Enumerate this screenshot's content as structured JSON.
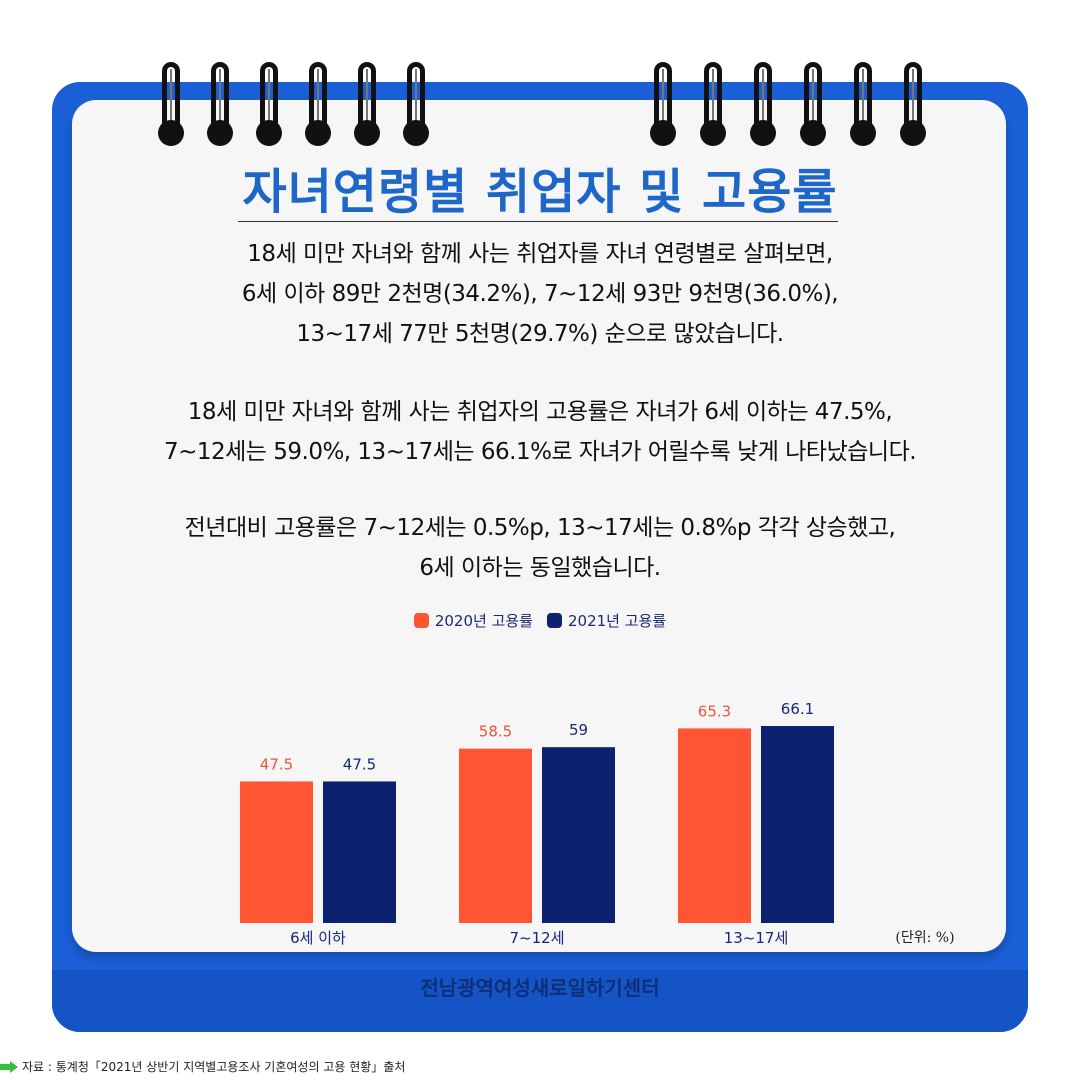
{
  "title": "자녀연령별 취업자 및 고용률",
  "paragraphs": [
    [
      "18세 미만 자녀와 함께 사는 취업자를 자녀 연령별로 살펴보면,",
      "6세 이하 89만 2천명(34.2%), 7~12세 93만 9천명(36.0%),",
      "13~17세 77만 5천명(29.7%) 순으로 많았습니다."
    ],
    [
      "18세 미만 자녀와 함께 사는 취업자의 고용률은 자녀가 6세 이하는 47.5%,",
      "7~12세는 59.0%, 13~17세는 66.1%로 자녀가 어릴수록 낮게 나타났습니다."
    ],
    [
      "전년대비 고용률은 7~12세는 0.5%p, 13~17세는 0.8%p 각각 상승했고,",
      "6세 이하는 동일했습니다."
    ]
  ],
  "chart_data": {
    "type": "bar",
    "categories": [
      "6세 이하",
      "7~12세",
      "13~17세"
    ],
    "series": [
      {
        "name": "2020년 고용률",
        "values": [
          47.5,
          58.5,
          65.3
        ],
        "color": "#ff5533",
        "label_color": "#e8553a"
      },
      {
        "name": "2021년 고용률",
        "values": [
          47.5,
          59,
          66.1
        ],
        "color": "#0c2170",
        "label_color": "#15277a"
      }
    ],
    "value_labels": [
      [
        "47.5",
        "58.5",
        "65.3"
      ],
      [
        "47.5",
        "59",
        "66.1"
      ]
    ],
    "ylim": [
      0,
      100
    ],
    "unit_label": "(단위: %)",
    "legend_position": "top-center",
    "grid": false
  },
  "footer_org": "전남광역여성새로일하기센터",
  "source": "자료 : 통계청「2021년 상반기 지역별고용조사 기혼여성의 고용 현황」출처",
  "colors": {
    "calendar_blue": "#1a5fd6",
    "title_blue": "#1f66c9",
    "bar_2020": "#ff5533",
    "bar_2021": "#0c2170"
  }
}
